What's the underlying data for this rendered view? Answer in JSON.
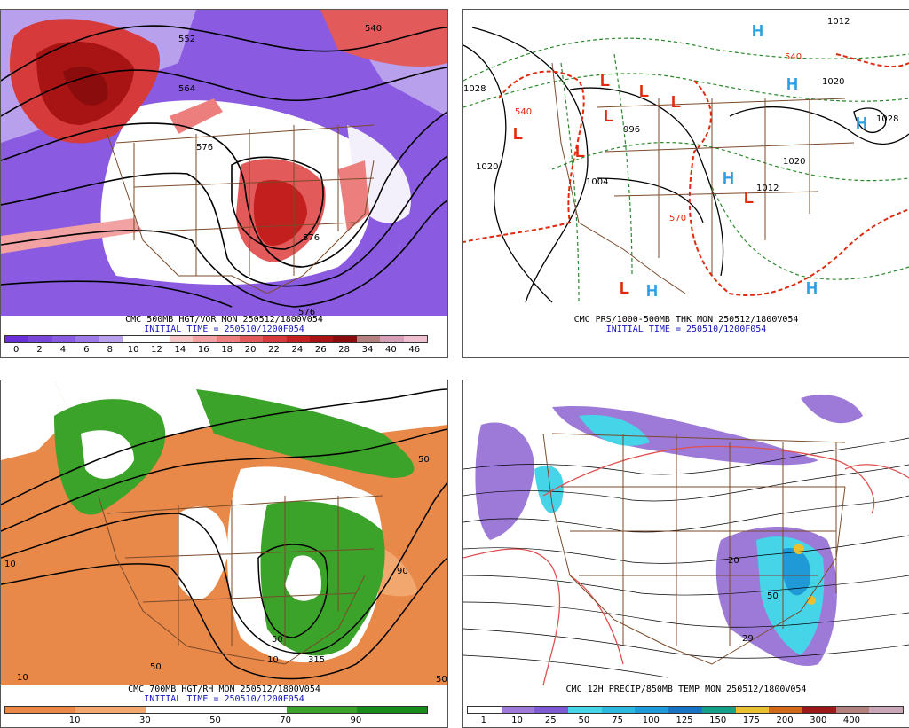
{
  "panels": [
    {
      "id": "vort500",
      "caption": "CMC 500MB HGT/VOR MON 250512/1800V054",
      "initial": "INITIAL TIME = 250510/1200F054",
      "scale_ticks": [
        "0",
        "2",
        "4",
        "6",
        "8",
        "10",
        "12",
        "14",
        "16",
        "18",
        "20",
        "22",
        "24",
        "26",
        "28",
        "34",
        "40",
        "46"
      ],
      "scale_colors": [
        "#6a2fd6",
        "#7a45d9",
        "#8a5be0",
        "#9e7ae6",
        "#b8a0ec",
        "#ffffff",
        "#ffffff",
        "#f7c7c7",
        "#f2a2a2",
        "#ec7e7e",
        "#e35a5a",
        "#d63a3a",
        "#c41f1f",
        "#a81414",
        "#8a0c0c",
        "#b48080",
        "#d8a0b8",
        "#f0c0d0"
      ],
      "contour_labels": [
        "552",
        "564",
        "576",
        "576",
        "540",
        "576"
      ]
    },
    {
      "id": "prs1000",
      "caption": "CMC PRS/1000-500MB THK MON 250512/1800V054",
      "initial": "INITIAL TIME = 250510/1200F054",
      "pressure_labels": [
        "1028",
        "1020",
        "1004",
        "996",
        "1012",
        "1012",
        "1020",
        "1028",
        "1020",
        "540",
        "540",
        "570"
      ],
      "highs": [
        "H",
        "H",
        "H",
        "H",
        "H",
        "H"
      ],
      "lows": [
        "L",
        "L",
        "L",
        "L",
        "L",
        "L",
        "L"
      ]
    },
    {
      "id": "rh700",
      "caption": "CMC 700MB HGT/RH MON 250512/1800V054",
      "initial": "INITIAL TIME = 250510/1200F054",
      "scale_ticks": [
        "10",
        "30",
        "50",
        "70",
        "90"
      ],
      "scale_colors": [
        "#e8894a",
        "#f2a76e",
        "#ffffff",
        "#ffffff",
        "#3ca32a",
        "#1a8a1a"
      ],
      "contour_labels": [
        "10",
        "10",
        "50",
        "50",
        "50",
        "90",
        "315",
        "10",
        "50"
      ]
    },
    {
      "id": "precip12",
      "caption": "CMC 12H PRECIP/850MB TEMP MON 250512/1800V054",
      "scale_ticks": [
        "1",
        "10",
        "25",
        "50",
        "75",
        "100",
        "125",
        "150",
        "175",
        "200",
        "300",
        "400"
      ],
      "scale_colors": [
        "#ffffff",
        "#9d7ad8",
        "#7c5cd0",
        "#46d4e8",
        "#2bb9e0",
        "#1f9ad6",
        "#1a72c2",
        "#15a08a",
        "#e8c030",
        "#d06a1a",
        "#9a1a1a",
        "#b38080",
        "#c9a6b8"
      ],
      "contour_labels": [
        "20",
        "50",
        "29"
      ]
    }
  ]
}
